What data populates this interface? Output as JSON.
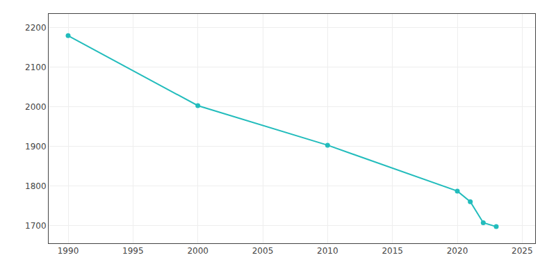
{
  "chart_data": {
    "type": "line",
    "x": [
      1990,
      2000,
      2010,
      2020,
      2021,
      2022,
      2023
    ],
    "values": [
      2180,
      2003,
      1903,
      1787,
      1760,
      1707,
      1697
    ],
    "color": "#22BCBC",
    "marker": "circle",
    "xlim": [
      1988.5,
      2026
    ],
    "ylim": [
      1655,
      2235
    ],
    "xticks": [
      1990,
      1995,
      2000,
      2005,
      2010,
      2015,
      2020,
      2025
    ],
    "yticks": [
      1700,
      1800,
      1900,
      2000,
      2100,
      2200
    ],
    "grid": true
  }
}
